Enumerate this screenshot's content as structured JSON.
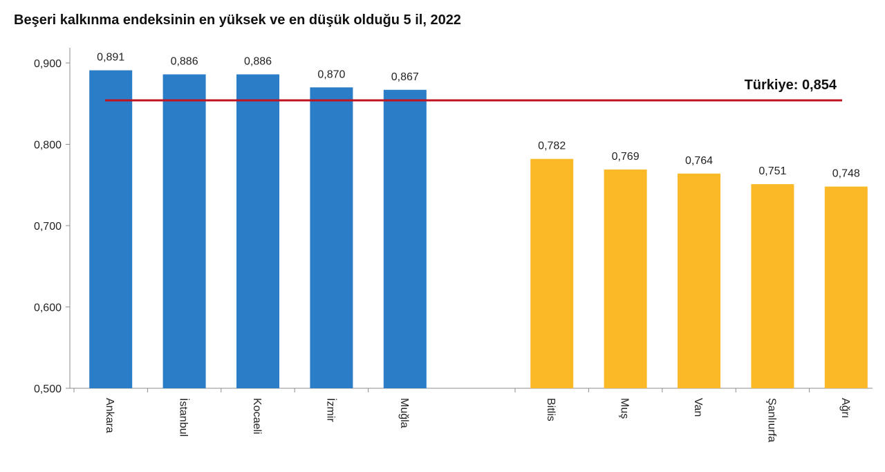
{
  "chart_data": {
    "type": "bar",
    "title": "Beşeri kalkınma endeksinin en yüksek ve en düşük olduğu 5 il, 2022",
    "xlabel": "",
    "ylabel": "",
    "ylim": [
      0.5,
      0.9
    ],
    "yticks": [
      "0,500",
      "0,600",
      "0,700",
      "0,800",
      "0,900"
    ],
    "ytick_values": [
      0.5,
      0.6,
      0.7,
      0.8,
      0.9
    ],
    "grid": false,
    "groups": [
      {
        "color": "#2a7dc6",
        "categories": [
          "Ankara",
          "İstanbul",
          "Kocaeli",
          "İzmir",
          "Muğla"
        ],
        "values": [
          0.891,
          0.886,
          0.886,
          0.87,
          0.867
        ],
        "labels": [
          "0,891",
          "0,886",
          "0,886",
          "0,870",
          "0,867"
        ]
      },
      {
        "color": "#fbb928",
        "categories": [
          "Bitlis",
          "Muş",
          "Van",
          "Şanlıurfa",
          "Ağrı"
        ],
        "values": [
          0.782,
          0.769,
          0.764,
          0.751,
          0.748
        ],
        "labels": [
          "0,782",
          "0,769",
          "0,764",
          "0,751",
          "0,748"
        ]
      }
    ],
    "reference_line": {
      "value": 0.854,
      "label": "Türkiye: 0,854",
      "color": "#c0121f"
    }
  }
}
